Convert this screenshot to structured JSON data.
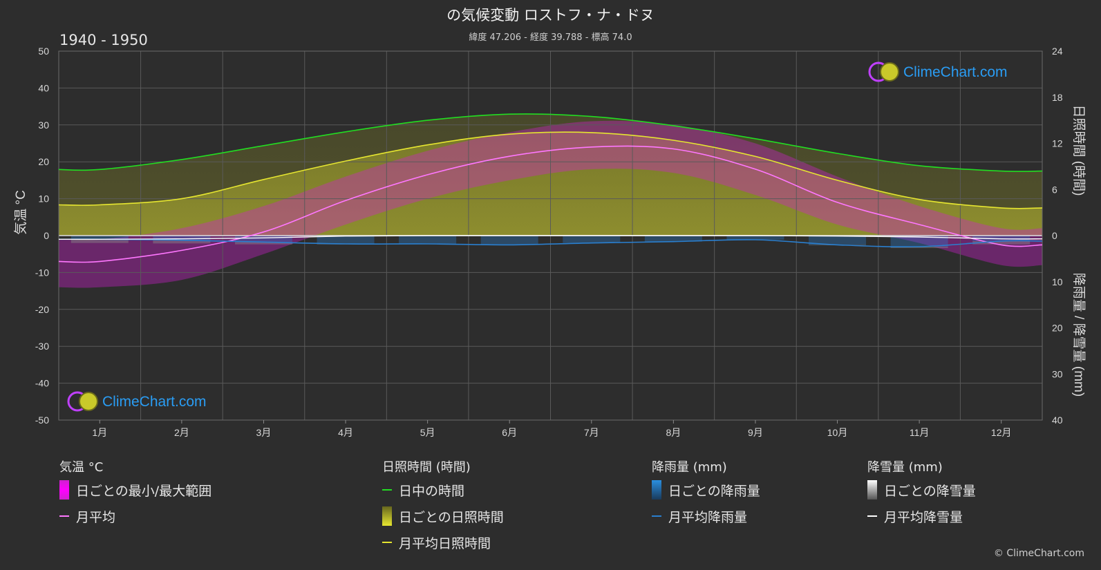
{
  "header": {
    "title": "の気候変動 ロストフ・ナ・ドヌ",
    "subtitle": "緯度 47.206 - 経度 39.788 - 標高 74.0",
    "period": "1940 - 1950"
  },
  "brand": {
    "text": "ClimeChart.com",
    "copyright": "© ClimeChart.com"
  },
  "chart_data": {
    "type": "area",
    "categories": [
      "1月",
      "2月",
      "3月",
      "4月",
      "5月",
      "6月",
      "7月",
      "8月",
      "9月",
      "10月",
      "11月",
      "12月"
    ],
    "left_axis": {
      "label": "気温 °C",
      "ylim": [
        -50,
        50
      ],
      "ticks": [
        "50",
        "40",
        "30",
        "20",
        "10",
        "0",
        "-10",
        "-20",
        "-30",
        "-40",
        "-50"
      ]
    },
    "right_axis_top": {
      "label": "日照時間 (時間)",
      "ylim": [
        0,
        24
      ],
      "ticks": [
        "24",
        "18",
        "12",
        "6",
        "0"
      ]
    },
    "right_axis_bottom": {
      "label": "降雨量 / 降雪量 (mm)",
      "ylim": [
        0,
        40
      ],
      "ticks": [
        "0",
        "10",
        "20",
        "30",
        "40"
      ]
    },
    "grid": true,
    "series": [
      {
        "name": "日中の時間",
        "axis": "sunshine",
        "values": [
          8.6,
          9.9,
          11.7,
          13.5,
          15.0,
          15.8,
          15.5,
          14.3,
          12.6,
          10.7,
          9.1,
          8.4
        ]
      },
      {
        "name": "月平均日照時間",
        "axis": "sunshine",
        "values": [
          4.0,
          4.8,
          7.3,
          9.7,
          11.8,
          13.2,
          13.4,
          12.4,
          10.3,
          7.2,
          4.7,
          3.6
        ]
      },
      {
        "name": "月平均",
        "axis": "temperature",
        "values": [
          -7.0,
          -4.0,
          1.0,
          9.5,
          16.5,
          21.5,
          24.0,
          23.5,
          18.0,
          9.0,
          3.0,
          -2.5
        ]
      },
      {
        "name": "月平均降雨量",
        "axis": "precipitation",
        "values": [
          0.8,
          1.0,
          1.4,
          1.8,
          1.8,
          2.0,
          1.6,
          1.3,
          0.9,
          2.0,
          2.4,
          1.2
        ]
      },
      {
        "name": "月平均降雪量",
        "axis": "precipitation",
        "values": [
          0.8,
          0.7,
          0.5,
          0.1,
          0,
          0,
          0,
          0,
          0,
          0.1,
          0.3,
          0.7
        ]
      }
    ],
    "temperature_daily_range": {
      "name": "日ごとの最小/最大範囲",
      "min": [
        -14,
        -12,
        -5,
        3,
        10,
        15,
        18,
        17,
        11,
        3,
        -2,
        -8
      ],
      "max": [
        -1,
        2,
        8,
        16,
        23,
        28,
        31,
        30,
        25,
        16,
        8,
        2
      ]
    },
    "colors": {
      "daylight": "#22dd22",
      "sunshine": "#e6e630",
      "sunshine_daily": "#a5a532",
      "temp_avg": "#ff77ff",
      "temp_range": "#d020d0",
      "rain": "#2a7fcf",
      "snow": "#ffffff",
      "snow_daily": "#8a8a8a"
    }
  },
  "legend": {
    "temperature": {
      "title": "気温 °C",
      "items": [
        "日ごとの最小/最大範囲",
        "月平均"
      ]
    },
    "sunshine": {
      "title": "日照時間 (時間)",
      "items": [
        "日中の時間",
        "日ごとの日照時間",
        "月平均日照時間"
      ]
    },
    "rain": {
      "title": "降雨量 (mm)",
      "items": [
        "日ごとの降雨量",
        "月平均降雨量"
      ]
    },
    "snow": {
      "title": "降雪量 (mm)",
      "items": [
        "日ごとの降雪量",
        "月平均降雪量"
      ]
    }
  }
}
